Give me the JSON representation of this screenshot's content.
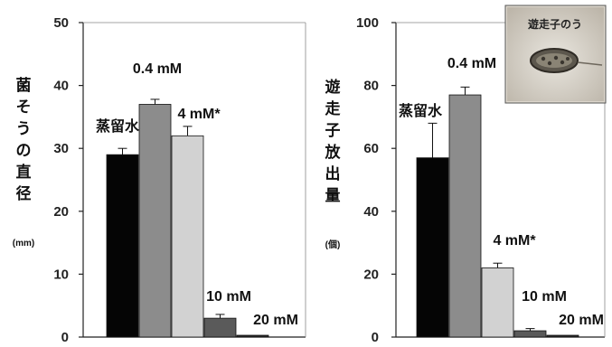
{
  "colors": {
    "distilled_water": "#050505",
    "c_0_4mM": "#8c8c8c",
    "c_4mM": "#d2d2d2",
    "c_10mM": "#5a5a5a",
    "c_20mM": "#2a2a2a"
  },
  "chart_data": [
    {
      "type": "bar",
      "ylabel": "菌そうの直径",
      "yunit": "(mm)",
      "ylim": [
        0,
        50
      ],
      "yticks": [
        0,
        10,
        20,
        30,
        40,
        50
      ],
      "categories": [
        "蒸留水",
        "0.4 mM",
        "4 mM*",
        "10 mM",
        "20 mM"
      ],
      "values": [
        29,
        37,
        32,
        3,
        0
      ],
      "errors": [
        1,
        0.8,
        1.5,
        0.6,
        0
      ],
      "colors": [
        "#050505",
        "#8c8c8c",
        "#d2d2d2",
        "#5a5a5a",
        "#2a2a2a"
      ],
      "grid": false,
      "legend": "none"
    },
    {
      "type": "bar",
      "ylabel": "遊走子放出量",
      "yunit": "(個)",
      "ylim": [
        0,
        100
      ],
      "yticks": [
        0,
        20,
        40,
        60,
        80,
        100
      ],
      "categories": [
        "蒸留水",
        "0.4 mM",
        "4 mM*",
        "10 mM",
        "20 mM"
      ],
      "values": [
        57,
        77,
        22,
        2,
        0
      ],
      "errors": [
        11,
        2.5,
        1.5,
        0.7,
        0
      ],
      "colors": [
        "#050505",
        "#8c8c8c",
        "#d2d2d2",
        "#5a5a5a",
        "#2a2a2a"
      ],
      "grid": false,
      "legend": "none",
      "inset": {
        "label": "遊走子のう",
        "icon": "sporangium-photo"
      }
    }
  ]
}
